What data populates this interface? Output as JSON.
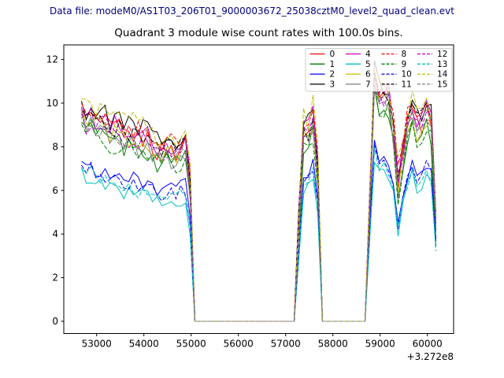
{
  "header": {
    "text": "Data file: modeM0/AS1T03_206T01_9000003672_25038cztM0_level2_quad_clean.evt",
    "color": "#000080"
  },
  "title": {
    "text": "Quadrant 3 module wise count rates with 100.0s bins."
  },
  "colors": {
    "axes": "#000000",
    "background": "#ffffff",
    "legend_border": "#cccccc",
    "legend_background_alpha": 0.8
  },
  "chart_data": {
    "type": "line",
    "title": "Quadrant 3 module wise count rates with 100.0s bins.",
    "xlabel": "",
    "ylabel": "",
    "grid": false,
    "legend_position": "upper right",
    "legend_columns": 4,
    "bin_seconds": 100,
    "x_axis": {
      "ticks": [
        53000,
        54000,
        55000,
        56000,
        57000,
        58000,
        59000,
        60000
      ],
      "offset_label": "+3.272e8",
      "lim": [
        52305,
        60555
      ]
    },
    "y_axis": {
      "ticks": [
        0,
        2,
        4,
        6,
        8,
        10,
        12
      ],
      "lim": [
        -0.56,
        12.67
      ]
    },
    "x_start": 52680,
    "x_step": 100,
    "n_points": 76,
    "base_curves": {
      "comment": "piecewise-linear cluster mean curves; upper = modules 0,1,3,4,6,7,8,9,11,12,14,15; lower = modules 2,5,10,13; zero stretches are data gaps (rate 0)",
      "x": [
        52680,
        52760,
        52860,
        53000,
        53150,
        53300,
        53450,
        53600,
        53750,
        53900,
        54050,
        54200,
        54350,
        54500,
        54650,
        54800,
        54950,
        55070,
        57230,
        57280,
        57360,
        57460,
        57570,
        57660,
        57770,
        58730,
        58790,
        58870,
        59010,
        59150,
        59280,
        59400,
        59500,
        59600,
        59700,
        59800,
        59900,
        60000,
        60080,
        60180
      ],
      "upper": [
        9.6,
        9.0,
        9.4,
        8.9,
        9.0,
        8.6,
        8.8,
        8.4,
        8.5,
        8.2,
        8.4,
        7.9,
        7.6,
        7.9,
        7.6,
        8.0,
        8.2,
        0,
        0,
        4.5,
        8.7,
        8.3,
        9.3,
        8.4,
        0,
        0,
        6.5,
        11.2,
        9.7,
        10.7,
        8.6,
        5.9,
        8.0,
        9.2,
        9.5,
        8.7,
        9.1,
        9.6,
        8.9,
        4.3
      ],
      "lower": [
        7.1,
        6.6,
        6.9,
        6.5,
        6.6,
        6.3,
        6.4,
        6.1,
        6.2,
        6.0,
        6.1,
        5.8,
        5.6,
        5.8,
        5.6,
        5.9,
        6.0,
        0,
        0,
        3.2,
        6.5,
        6.3,
        6.9,
        6.3,
        0,
        0,
        4.8,
        7.8,
        6.8,
        7.3,
        6.1,
        4.0,
        5.8,
        6.6,
        7.0,
        6.3,
        6.6,
        7.0,
        6.5,
        3.5
      ]
    },
    "noise_amplitude": {
      "upper": 0.5,
      "lower": 0.33
    },
    "series": [
      {
        "label": "0",
        "color": "#ff0000",
        "style": "solid",
        "group": "upper",
        "offset": 0.1
      },
      {
        "label": "1",
        "color": "#008000",
        "style": "solid",
        "group": "upper",
        "offset": -0.45
      },
      {
        "label": "2",
        "color": "#0000ff",
        "style": "solid",
        "group": "lower",
        "offset": 0.35
      },
      {
        "label": "3",
        "color": "#000000",
        "style": "solid",
        "group": "upper",
        "offset": 0.55
      },
      {
        "label": "4",
        "color": "#bf00bf",
        "style": "solid",
        "group": "upper",
        "offset": 0.3
      },
      {
        "label": "5",
        "color": "#00bfbf",
        "style": "solid",
        "group": "lower",
        "offset": -0.3
      },
      {
        "label": "6",
        "color": "#bfbf00",
        "style": "solid",
        "group": "upper",
        "offset": -0.15
      },
      {
        "label": "7",
        "color": "#7f7f7f",
        "style": "solid",
        "group": "upper",
        "offset": -0.3
      },
      {
        "label": "8",
        "color": "#ff0000",
        "style": "dashed",
        "group": "upper",
        "offset": 0.45
      },
      {
        "label": "9",
        "color": "#008000",
        "style": "dashed",
        "group": "upper",
        "offset": -0.55
      },
      {
        "label": "10",
        "color": "#0000ff",
        "style": "dashed",
        "group": "lower",
        "offset": 0.15
      },
      {
        "label": "11",
        "color": "#000000",
        "style": "dashed",
        "group": "upper",
        "offset": 0.2
      },
      {
        "label": "12",
        "color": "#bf00bf",
        "style": "dashed",
        "group": "upper",
        "offset": 0.0
      },
      {
        "label": "13",
        "color": "#00bfbf",
        "style": "dashed",
        "group": "lower",
        "offset": -0.05
      },
      {
        "label": "14",
        "color": "#bfbf00",
        "style": "dashed",
        "group": "upper",
        "offset": 0.7
      },
      {
        "label": "15",
        "color": "#7f7f7f",
        "style": "dashed",
        "group": "upper",
        "offset": -0.2
      }
    ]
  }
}
